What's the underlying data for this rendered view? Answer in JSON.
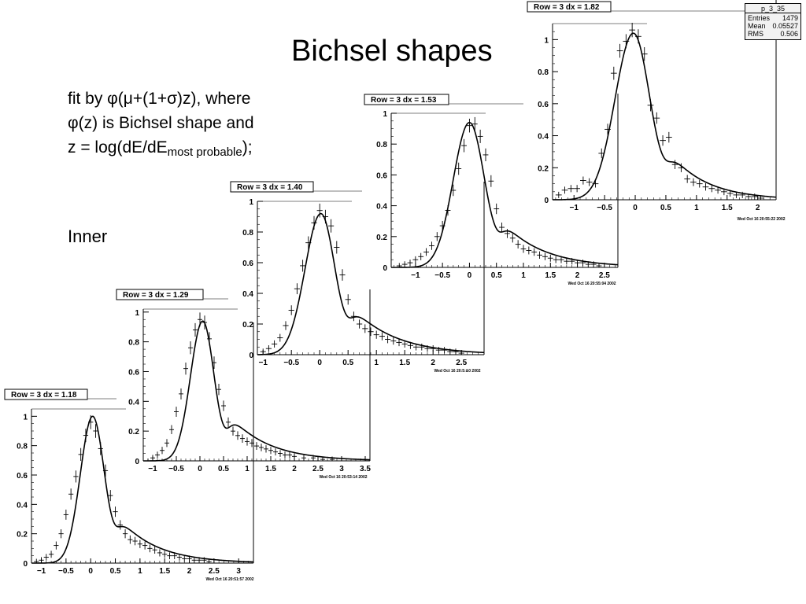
{
  "slide": {
    "title": "Bichsel shapes",
    "description": {
      "line1": "fit by φ(μ+(1+σ)z), where",
      "line2": "φ(z) is Bichsel shape and",
      "line3_prefix": "z = log(dE/dE",
      "line3_sub": "most probable",
      "line3_suffix": ");"
    },
    "section_label": "Inner"
  },
  "stats_box": {
    "title": "p_3_35",
    "rows": [
      {
        "label": "Entries",
        "value": "1479"
      },
      {
        "label": "Mean",
        "value": "0.05527"
      },
      {
        "label": "RMS",
        "value": "0.506"
      }
    ]
  },
  "chart_data": [
    {
      "type": "scatter",
      "title": "Row = 3 dx =   1.18",
      "date": "Wed Oct 16 20:51:57 2002",
      "xlim": [
        -1.2,
        3.3
      ],
      "ylim": [
        0,
        1.05
      ],
      "xticks": [
        -1,
        -0.5,
        0,
        0.5,
        1,
        1.5,
        2,
        2.5,
        3
      ],
      "xtick_labels": [
        "−1",
        "−0.5",
        "0",
        "0.5",
        "1",
        "1.5",
        "2",
        "2.5",
        "3"
      ],
      "yticks": [
        0,
        0.2,
        0.4,
        0.6,
        0.8,
        1
      ],
      "ytick_labels": [
        "0",
        "0.2",
        "0.4",
        "0.6",
        "0.8",
        "1"
      ],
      "fit": {
        "peak": 0.04,
        "amplitude": 1.0,
        "sigma_left": 0.25,
        "sigma_right": 0.24,
        "tail_amp": 0.32,
        "tail_start": 0.55,
        "tail_decay": 0.75
      },
      "x": [
        -1.1,
        -1.0,
        -0.9,
        -0.8,
        -0.7,
        -0.6,
        -0.5,
        -0.4,
        -0.3,
        -0.2,
        -0.1,
        0.0,
        0.1,
        0.2,
        0.3,
        0.4,
        0.5,
        0.6,
        0.7,
        0.8,
        0.9,
        1.0,
        1.1,
        1.2,
        1.3,
        1.4,
        1.5,
        1.6,
        1.7,
        1.8,
        1.9,
        2.0,
        2.1,
        2.2,
        2.3,
        2.4
      ],
      "y": [
        0.01,
        0.02,
        0.04,
        0.06,
        0.12,
        0.2,
        0.33,
        0.47,
        0.59,
        0.74,
        0.87,
        0.96,
        0.9,
        0.78,
        0.63,
        0.46,
        0.35,
        0.26,
        0.2,
        0.16,
        0.15,
        0.13,
        0.12,
        0.1,
        0.09,
        0.07,
        0.06,
        0.05,
        0.05,
        0.04,
        0.03,
        0.03,
        0.02,
        0.02,
        0.02,
        0.01
      ]
    },
    {
      "type": "scatter",
      "title": "Row = 3 dx =   1.29",
      "date": "Wed Oct 16 20:53:14 2002",
      "xlim": [
        -1.2,
        3.6
      ],
      "ylim": [
        0,
        1.02
      ],
      "xticks": [
        -1,
        -0.5,
        0,
        0.5,
        1,
        1.5,
        2,
        2.5,
        3,
        3.5
      ],
      "xtick_labels": [
        "−1",
        "−0.5",
        "0",
        "0.5",
        "1",
        "1.5",
        "2",
        "2.5",
        "3",
        "3.5"
      ],
      "yticks": [
        0,
        0.2,
        0.4,
        0.6,
        0.8,
        1
      ],
      "ytick_labels": [
        "0",
        "0.2",
        "0.4",
        "0.6",
        "0.8",
        "1"
      ],
      "fit": {
        "peak": 0.06,
        "amplitude": 0.94,
        "sigma_left": 0.26,
        "sigma_right": 0.24,
        "tail_amp": 0.32,
        "tail_start": 0.6,
        "tail_decay": 0.8
      },
      "x": [
        -1.1,
        -1.0,
        -0.9,
        -0.8,
        -0.7,
        -0.6,
        -0.5,
        -0.4,
        -0.3,
        -0.2,
        -0.1,
        0.0,
        0.1,
        0.2,
        0.3,
        0.4,
        0.5,
        0.6,
        0.7,
        0.8,
        0.9,
        1.0,
        1.1,
        1.2,
        1.3,
        1.4,
        1.5,
        1.6,
        1.7,
        1.8,
        1.9,
        2.0,
        2.2,
        2.4,
        2.6,
        2.8
      ],
      "y": [
        0.0,
        0.02,
        0.04,
        0.07,
        0.12,
        0.21,
        0.33,
        0.45,
        0.62,
        0.76,
        0.88,
        0.95,
        0.93,
        0.82,
        0.66,
        0.48,
        0.37,
        0.26,
        0.2,
        0.17,
        0.15,
        0.13,
        0.12,
        0.1,
        0.09,
        0.08,
        0.07,
        0.06,
        0.05,
        0.04,
        0.04,
        0.03,
        0.02,
        0.02,
        0.01,
        0.01
      ]
    },
    {
      "type": "scatter",
      "title": "Row = 3 dx =   1.40",
      "date": "Wed Oct 16 20:5:&0 2002",
      "xlim": [
        -1.1,
        2.9
      ],
      "ylim": [
        0,
        1.0
      ],
      "xticks": [
        -1,
        -0.5,
        0,
        0.5,
        1,
        1.5,
        2,
        2.5
      ],
      "xtick_labels": [
        "−1",
        "−0.5",
        "0",
        "0.5",
        "1",
        "1.5",
        "2",
        "2.5"
      ],
      "yticks": [
        0,
        0.2,
        0.4,
        0.6,
        0.8,
        1
      ],
      "ytick_labels": [
        "0",
        "0.2",
        "0.4",
        "0.6",
        "0.8",
        "1"
      ],
      "fit": {
        "peak": 0.02,
        "amplitude": 0.92,
        "sigma_left": 0.28,
        "sigma_right": 0.25,
        "tail_amp": 0.32,
        "tail_start": 0.55,
        "tail_decay": 0.75
      },
      "x": [
        -1.0,
        -0.9,
        -0.8,
        -0.7,
        -0.6,
        -0.5,
        -0.4,
        -0.3,
        -0.2,
        -0.1,
        0.0,
        0.1,
        0.2,
        0.3,
        0.4,
        0.5,
        0.6,
        0.7,
        0.8,
        0.9,
        1.0,
        1.1,
        1.2,
        1.3,
        1.4,
        1.5,
        1.6,
        1.7,
        1.8,
        1.9,
        2.0,
        2.1,
        2.2,
        2.3,
        2.4,
        2.5
      ],
      "y": [
        0.02,
        0.04,
        0.07,
        0.11,
        0.19,
        0.29,
        0.43,
        0.58,
        0.73,
        0.86,
        0.94,
        0.9,
        0.84,
        0.7,
        0.52,
        0.36,
        0.25,
        0.2,
        0.17,
        0.15,
        0.13,
        0.12,
        0.1,
        0.09,
        0.08,
        0.07,
        0.06,
        0.05,
        0.05,
        0.04,
        0.04,
        0.03,
        0.03,
        0.02,
        0.02,
        0.01
      ]
    },
    {
      "type": "scatter",
      "title": "Row = 3 dx =   1.53",
      "date": "Wed Oct 16 20:55:04 2002",
      "xlim": [
        -1.45,
        2.75
      ],
      "ylim": [
        0,
        1.0
      ],
      "xticks": [
        -1,
        -0.5,
        0,
        0.5,
        1,
        1.5,
        2,
        2.5
      ],
      "xtick_labels": [
        "−1",
        "−0.5",
        "0",
        "0.5",
        "1",
        "1.5",
        "2",
        "2.5"
      ],
      "yticks": [
        0,
        0.2,
        0.4,
        0.6,
        0.8,
        1
      ],
      "ytick_labels": [
        "0",
        "0.2",
        "0.4",
        "0.6",
        "0.8",
        "1"
      ],
      "fit": {
        "peak": 0.0,
        "amplitude": 0.94,
        "sigma_left": 0.3,
        "sigma_right": 0.28,
        "tail_amp": 0.3,
        "tail_start": 0.6,
        "tail_decay": 0.75
      },
      "x": [
        -1.3,
        -1.2,
        -1.1,
        -1.0,
        -0.9,
        -0.8,
        -0.7,
        -0.6,
        -0.5,
        -0.4,
        -0.3,
        -0.2,
        -0.1,
        0.0,
        0.1,
        0.2,
        0.3,
        0.4,
        0.5,
        0.6,
        0.7,
        0.8,
        0.9,
        1.0,
        1.1,
        1.2,
        1.3,
        1.4,
        1.5,
        1.6,
        1.7,
        1.8,
        1.9,
        2.0,
        2.1,
        2.2,
        2.3,
        2.4
      ],
      "y": [
        0.01,
        0.02,
        0.03,
        0.05,
        0.07,
        0.1,
        0.14,
        0.2,
        0.27,
        0.37,
        0.5,
        0.64,
        0.79,
        0.92,
        0.93,
        0.85,
        0.73,
        0.56,
        0.38,
        0.26,
        0.22,
        0.19,
        0.15,
        0.12,
        0.11,
        0.1,
        0.08,
        0.07,
        0.06,
        0.05,
        0.05,
        0.04,
        0.04,
        0.03,
        0.03,
        0.02,
        0.02,
        0.01
      ]
    },
    {
      "type": "scatter",
      "title": "Row = 3 dx =   1.82",
      "date": "Wed Oct 16 20:55:22 2002",
      "xlim": [
        -1.35,
        2.3
      ],
      "ylim": [
        0,
        1.1
      ],
      "xticks": [
        -1,
        -0.5,
        0,
        0.5,
        1,
        1.5,
        2
      ],
      "xtick_labels": [
        "−1",
        "−0.5",
        "0",
        "0.5",
        "1",
        "1.5",
        "2"
      ],
      "yticks": [
        0,
        0.2,
        0.4,
        0.6,
        0.8,
        1
      ],
      "ytick_labels": [
        "0",
        "0.2",
        "0.4",
        "0.6",
        "0.8",
        "1"
      ],
      "fit": {
        "peak": -0.03,
        "amplitude": 1.04,
        "sigma_left": 0.3,
        "sigma_right": 0.27,
        "tail_amp": 0.3,
        "tail_start": 0.55,
        "tail_decay": 0.6
      },
      "x": [
        -1.25,
        -1.15,
        -1.05,
        -0.95,
        -0.85,
        -0.75,
        -0.65,
        -0.55,
        -0.45,
        -0.35,
        -0.25,
        -0.15,
        -0.05,
        0.05,
        0.15,
        0.25,
        0.35,
        0.45,
        0.55,
        0.65,
        0.75,
        0.85,
        0.95,
        1.05,
        1.15,
        1.25,
        1.35,
        1.45,
        1.55,
        1.65,
        1.75,
        1.85,
        1.95,
        2.05
      ],
      "y": [
        0.03,
        0.06,
        0.07,
        0.07,
        0.12,
        0.11,
        0.1,
        0.29,
        0.44,
        0.79,
        0.93,
        0.99,
        1.06,
        1.02,
        0.91,
        0.59,
        0.51,
        0.37,
        0.39,
        0.22,
        0.2,
        0.13,
        0.11,
        0.1,
        0.08,
        0.07,
        0.06,
        0.05,
        0.04,
        0.03,
        0.03,
        0.02,
        0.02,
        0.01
      ]
    }
  ]
}
